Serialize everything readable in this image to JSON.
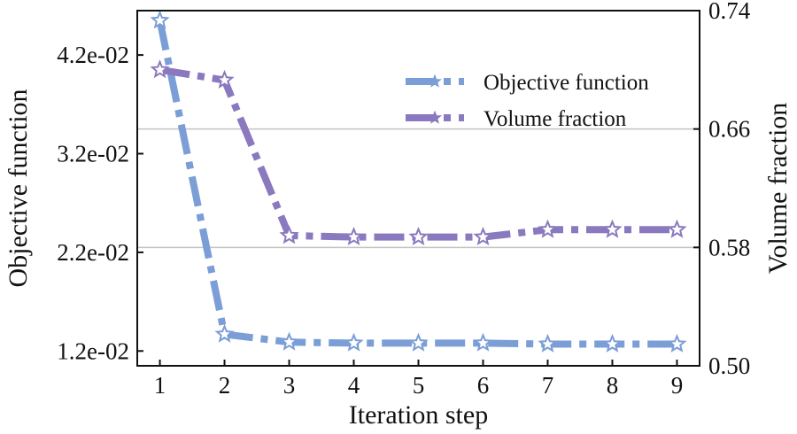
{
  "chart_data": {
    "type": "line",
    "title": "",
    "xlabel": "Iteration step",
    "ylabel": "Objective function",
    "y2label": "Volume fraction",
    "x": [
      1,
      2,
      3,
      4,
      5,
      6,
      7,
      8,
      9
    ],
    "xlim": [
      0.65,
      9.35
    ],
    "xticks": [
      1,
      2,
      3,
      4,
      5,
      6,
      7,
      8,
      9
    ],
    "ylim": [
      0.0105,
      0.0465
    ],
    "yticks": [
      0.012,
      0.022,
      0.032,
      0.042
    ],
    "ytick_labels": [
      "1.2e-02",
      "2.2e-02",
      "3.2e-02",
      "4.2e-02"
    ],
    "y2lim": [
      0.5,
      0.74
    ],
    "y2ticks": [
      0.5,
      0.58,
      0.66,
      0.74
    ],
    "y2tick_labels": [
      "0.50",
      "0.58",
      "0.66",
      "0.74"
    ],
    "grid": "horizontal",
    "legend_position": "top-right",
    "series": [
      {
        "name": "Objective function",
        "axis": "left",
        "color": "#7b9ed6",
        "values": [
          0.0455,
          0.0137,
          0.0129,
          0.0128,
          0.0128,
          0.0128,
          0.0127,
          0.0127,
          0.0127
        ]
      },
      {
        "name": "Volume fraction",
        "axis": "right",
        "color": "#8b79bf",
        "values": [
          0.7,
          0.693,
          0.588,
          0.587,
          0.587,
          0.587,
          0.592,
          0.592,
          0.592
        ]
      }
    ]
  }
}
